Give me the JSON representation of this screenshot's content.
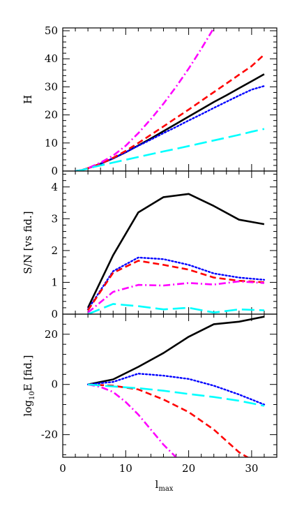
{
  "chart_data": [
    {
      "type": "line",
      "ylabel": "H",
      "xlim": [
        0,
        34
      ],
      "ylim": [
        0,
        51
      ],
      "yticks": [
        0,
        10,
        20,
        30,
        40,
        50
      ],
      "series": [
        {
          "style": "solid",
          "color": "#000000",
          "x": [
            2,
            3,
            4,
            5,
            6,
            8,
            10,
            12,
            14,
            16,
            18,
            20,
            22,
            24,
            26,
            28,
            30,
            32
          ],
          "y": [
            0,
            0.3,
            1.0,
            1.8,
            2.6,
            4.5,
            6.7,
            9.1,
            11.6,
            14.2,
            16.8,
            19.4,
            22.0,
            24.6,
            27.0,
            29.5,
            32.0,
            34.5
          ]
        },
        {
          "style": "dotted",
          "color": "#0000ff",
          "x": [
            2,
            3,
            4,
            5,
            6,
            8,
            10,
            12,
            14,
            16,
            18,
            20,
            22,
            24,
            26,
            28,
            30,
            32
          ],
          "y": [
            0,
            0.3,
            1.0,
            1.8,
            2.6,
            4.5,
            6.7,
            9.0,
            11.2,
            13.5,
            15.7,
            18.0,
            20.2,
            22.5,
            24.7,
            26.9,
            29.0,
            30.3
          ]
        },
        {
          "style": "dashed",
          "color": "#ff0000",
          "x": [
            2,
            3,
            4,
            5,
            6,
            8,
            10,
            12,
            14,
            16,
            18,
            20,
            22,
            24,
            26,
            28,
            30,
            32
          ],
          "y": [
            0,
            0.3,
            1.0,
            1.8,
            2.6,
            4.7,
            7.2,
            10.0,
            12.9,
            15.9,
            18.9,
            21.9,
            25.0,
            28.1,
            31.2,
            34.3,
            37.4,
            41.5
          ]
        },
        {
          "style": "dash-dot",
          "color": "#ff00ff",
          "x": [
            2,
            3,
            4,
            5,
            6,
            8,
            10,
            12,
            14,
            16,
            18,
            20,
            22,
            24
          ],
          "y": [
            0,
            0.3,
            1.0,
            2.0,
            3.0,
            5.5,
            9.0,
            13.5,
            18.5,
            24.0,
            30.0,
            36.5,
            43.5,
            51.0
          ]
        },
        {
          "style": "long-dash",
          "color": "#00ffff",
          "x": [
            2,
            3,
            4,
            5,
            6,
            8,
            10,
            12,
            14,
            16,
            18,
            20,
            22,
            24,
            26,
            28,
            30,
            32
          ],
          "y": [
            0,
            0.3,
            0.9,
            1.5,
            2.0,
            3.0,
            4.0,
            5.0,
            6.0,
            7.0,
            7.9,
            8.9,
            9.9,
            10.9,
            11.9,
            12.9,
            14.0,
            15.0
          ]
        }
      ]
    },
    {
      "type": "line",
      "ylabel": "S/N [vs fid.]",
      "xlim": [
        0,
        34
      ],
      "ylim": [
        0,
        4.5
      ],
      "yticks": [
        0,
        1,
        2,
        3,
        4
      ],
      "series": [
        {
          "style": "solid",
          "color": "#000000",
          "x": [
            4,
            8,
            12,
            16,
            20,
            24,
            28,
            32
          ],
          "y": [
            0.2,
            1.85,
            3.2,
            3.68,
            3.78,
            3.4,
            2.97,
            2.83
          ]
        },
        {
          "style": "dotted",
          "color": "#0000ff",
          "x": [
            4,
            8,
            12,
            16,
            20,
            24,
            28,
            32
          ],
          "y": [
            0.15,
            1.35,
            1.78,
            1.73,
            1.55,
            1.28,
            1.15,
            1.08
          ]
        },
        {
          "style": "dashed",
          "color": "#ff0000",
          "x": [
            4,
            8,
            12,
            16,
            20,
            24,
            28,
            32
          ],
          "y": [
            0.12,
            1.3,
            1.68,
            1.55,
            1.4,
            1.15,
            1.05,
            1.0
          ]
        },
        {
          "style": "dash-dot",
          "color": "#ff00ff",
          "x": [
            4,
            8,
            12,
            16,
            20,
            24,
            28,
            32
          ],
          "y": [
            0.05,
            0.7,
            0.92,
            0.9,
            0.98,
            0.93,
            1.03,
            0.98
          ]
        },
        {
          "style": "long-dash",
          "color": "#00ffff",
          "x": [
            4,
            8,
            12,
            16,
            20,
            24,
            28,
            32
          ],
          "y": [
            0.0,
            0.32,
            0.25,
            0.15,
            0.2,
            0.05,
            0.15,
            0.12
          ]
        }
      ]
    },
    {
      "type": "line",
      "ylabel": "log₁₀E [fid.]",
      "xlabel": "l",
      "xlabel_sub": "max",
      "xlim": [
        0,
        34
      ],
      "ylim": [
        -29,
        28
      ],
      "yticks": [
        -20,
        0,
        20
      ],
      "xticks": [
        0,
        10,
        20,
        30
      ],
      "series": [
        {
          "style": "solid",
          "color": "#000000",
          "x": [
            4,
            8,
            12,
            16,
            20,
            24,
            28,
            32
          ],
          "y": [
            0,
            2,
            7,
            12.5,
            19,
            24,
            25,
            27
          ]
        },
        {
          "style": "dotted",
          "color": "#0000ff",
          "x": [
            4,
            8,
            12,
            16,
            20,
            24,
            28,
            32
          ],
          "y": [
            0,
            1,
            4.3,
            3.5,
            2.2,
            -0.5,
            -4,
            -8
          ]
        },
        {
          "style": "dashed",
          "color": "#ff0000",
          "x": [
            4,
            8,
            12,
            16,
            20,
            24,
            28,
            32
          ],
          "y": [
            0,
            -0.5,
            -2,
            -6,
            -11,
            -18,
            -27,
            -33
          ]
        },
        {
          "style": "dash-dot",
          "color": "#ff00ff",
          "x": [
            4,
            6,
            8,
            10,
            12,
            14,
            16,
            18,
            20
          ],
          "y": [
            0,
            -1,
            -3,
            -7,
            -12,
            -18,
            -24,
            -29,
            -34
          ]
        },
        {
          "style": "long-dash",
          "color": "#00ffff",
          "x": [
            4,
            8,
            12,
            16,
            20,
            24,
            28,
            32
          ],
          "y": [
            0,
            -0.8,
            -1.5,
            -2.5,
            -3.8,
            -5,
            -6.5,
            -8.5
          ]
        }
      ]
    }
  ]
}
